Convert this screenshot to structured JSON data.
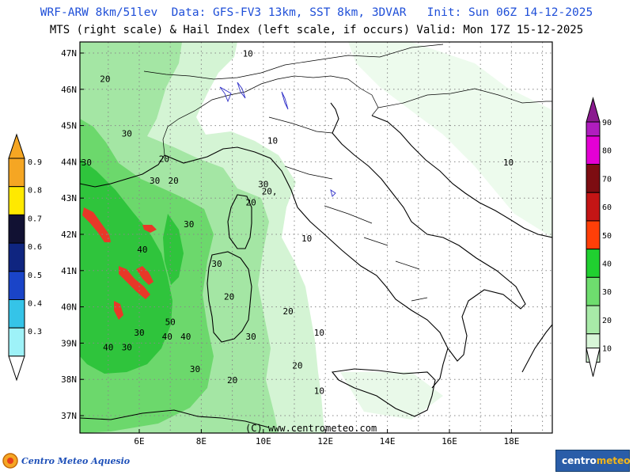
{
  "header": {
    "line1": "WRF-ARW 8km/51lev  Data: GFS-FV3 13km, SST 8km, 3DVAR   Init: Sun 06Z 14-12-2025",
    "line2": "MTS (right scale) & Hail Index (left scale, if occurs) Valid: Mon 17Z 15-12-2025"
  },
  "map": {
    "lat_labels": [
      "47N",
      "46N",
      "45N",
      "44N",
      "43N",
      "42N",
      "41N",
      "40N",
      "39N",
      "38N",
      "37N"
    ],
    "lon_labels": [
      "6E",
      "8E",
      "10E",
      "12E",
      "14E",
      "16E",
      "18E"
    ],
    "copyright": "(C) www.centrometeo.com",
    "contour_labels": [
      {
        "text": "10",
        "lon": 9.5,
        "lat": 46.9
      },
      {
        "text": "10",
        "lon": 10.3,
        "lat": 44.5
      },
      {
        "text": "10",
        "lon": 17.9,
        "lat": 43.9
      },
      {
        "text": "10",
        "lon": 11.4,
        "lat": 41.8
      },
      {
        "text": "10",
        "lon": 11.8,
        "lat": 39.2
      },
      {
        "text": "10",
        "lon": 11.8,
        "lat": 37.6
      },
      {
        "text": "20",
        "lon": 4.9,
        "lat": 46.2
      },
      {
        "text": "20",
        "lon": 6.8,
        "lat": 44.0
      },
      {
        "text": "20",
        "lon": 7.1,
        "lat": 43.4
      },
      {
        "text": "20",
        "lon": 9.6,
        "lat": 42.8
      },
      {
        "text": "20,",
        "lon": 10.2,
        "lat": 43.1
      },
      {
        "text": "20",
        "lon": 8.9,
        "lat": 40.2
      },
      {
        "text": "20",
        "lon": 10.8,
        "lat": 39.8
      },
      {
        "text": "20",
        "lon": 11.1,
        "lat": 38.3
      },
      {
        "text": "20",
        "lon": 9.0,
        "lat": 37.9
      },
      {
        "text": "30",
        "lon": 5.6,
        "lat": 44.7
      },
      {
        "text": "30",
        "lon": 4.3,
        "lat": 43.9
      },
      {
        "text": "30",
        "lon": 6.5,
        "lat": 43.4
      },
      {
        "text": "30",
        "lon": 10.0,
        "lat": 43.3
      },
      {
        "text": "30",
        "lon": 7.6,
        "lat": 42.2
      },
      {
        "text": "30",
        "lon": 8.5,
        "lat": 41.1
      },
      {
        "text": "30",
        "lon": 6.0,
        "lat": 39.2
      },
      {
        "text": "30",
        "lon": 5.6,
        "lat": 38.8
      },
      {
        "text": "30",
        "lon": 7.8,
        "lat": 38.2
      },
      {
        "text": "30",
        "lon": 9.6,
        "lat": 39.1
      },
      {
        "text": "40",
        "lon": 6.1,
        "lat": 41.5
      },
      {
        "text": "40",
        "lon": 6.9,
        "lat": 39.1
      },
      {
        "text": "40",
        "lon": 7.5,
        "lat": 39.1
      },
      {
        "text": "40",
        "lon": 5.0,
        "lat": 38.8
      },
      {
        "text": "50",
        "lon": 7.0,
        "lat": 39.5
      }
    ]
  },
  "left_scale": {
    "labels": [
      "0.9",
      "0.8",
      "0.7",
      "0.6",
      "0.5",
      "0.4",
      "0.3"
    ],
    "colors": [
      "#f5a623",
      "#ffe900",
      "#111133",
      "#0f2580",
      "#1a44c8",
      "#35c4e8",
      "#9ef2f8"
    ]
  },
  "right_scale": {
    "labels": [
      "90",
      "80",
      "70",
      "60",
      "50",
      "40",
      "30",
      "20",
      "10"
    ],
    "colors": [
      "#b01dbf",
      "#e400d4",
      "#7d0d12",
      "#c41515",
      "#ff3f08",
      "#20d030",
      "#6edd6e",
      "#a8eaa8",
      "#d8f6d8"
    ]
  },
  "logos": {
    "left_text": "Centro Meteo Aquesio",
    "right_text_a": "centro",
    "right_text_b": "meteo"
  }
}
